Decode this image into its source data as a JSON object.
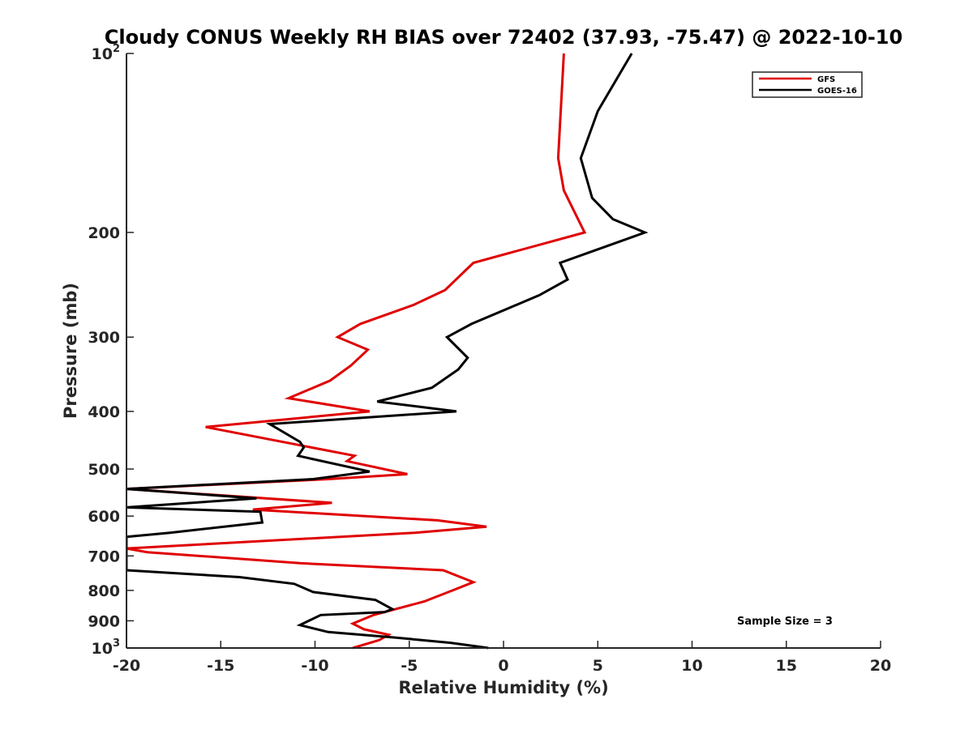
{
  "chart_data": {
    "type": "line",
    "title": "Cloudy CONUS Weekly RH BIAS over 72402 (37.93, -75.47) @ 2022-10-10",
    "xlabel": "Relative Humidity (%)",
    "ylabel": "Pressure (mb)",
    "xlim": [
      -20,
      20
    ],
    "ylim": [
      100,
      1000
    ],
    "y_scale": "log",
    "y_reversed": true,
    "grid": false,
    "legend_position": "top-right",
    "x_ticks": [
      "-20",
      "-15",
      "-10",
      "-5",
      "0",
      "5",
      "10",
      "15",
      "20"
    ],
    "y_ticks": [
      {
        "value": 100,
        "base": "10",
        "exp": "2"
      },
      {
        "value": 200,
        "label": "200"
      },
      {
        "value": 300,
        "label": "300"
      },
      {
        "value": 400,
        "label": "400"
      },
      {
        "value": 500,
        "label": "500"
      },
      {
        "value": 600,
        "label": "600"
      },
      {
        "value": 700,
        "label": "700"
      },
      {
        "value": 800,
        "label": "800"
      },
      {
        "value": 900,
        "label": "900"
      },
      {
        "value": 1000,
        "base": "10",
        "exp": "3"
      }
    ],
    "annotation": "Sample Size = 3",
    "series": [
      {
        "name": "GFS",
        "color": "#e00000",
        "points": [
          [
            3.2,
            100
          ],
          [
            2.9,
            150
          ],
          [
            3.2,
            170
          ],
          [
            4.3,
            200
          ],
          [
            -1.6,
            225
          ],
          [
            -3.1,
            250
          ],
          [
            -4.8,
            265
          ],
          [
            -7.6,
            285
          ],
          [
            -8.8,
            300
          ],
          [
            -7.2,
            315
          ],
          [
            -8.1,
            335
          ],
          [
            -9.2,
            355
          ],
          [
            -11.4,
            380
          ],
          [
            -7.1,
            400
          ],
          [
            -15.8,
            425
          ],
          [
            -7.9,
            475
          ],
          [
            -8.3,
            485
          ],
          [
            -5.1,
            510
          ],
          [
            -9.3,
            520
          ],
          [
            -20,
            540
          ],
          [
            -9.1,
            570
          ],
          [
            -13.3,
            585
          ],
          [
            -3.5,
            610
          ],
          [
            -0.9,
            625
          ],
          [
            -4.7,
            640
          ],
          [
            -20,
            680
          ],
          [
            -18.9,
            690
          ],
          [
            -10.8,
            720
          ],
          [
            -3.2,
            740
          ],
          [
            -1.6,
            775
          ],
          [
            -2.7,
            800
          ],
          [
            -4.2,
            835
          ],
          [
            -6.9,
            880
          ],
          [
            -8.0,
            910
          ],
          [
            -7.4,
            930
          ],
          [
            -6.1,
            950
          ],
          [
            -6.6,
            970
          ],
          [
            -8.0,
            1000
          ]
        ]
      },
      {
        "name": "GOES-16",
        "color": "#000000",
        "points": [
          [
            6.8,
            100
          ],
          [
            5.0,
            125
          ],
          [
            4.1,
            150
          ],
          [
            4.7,
            175
          ],
          [
            5.8,
            190
          ],
          [
            7.5,
            200
          ],
          [
            3.0,
            225
          ],
          [
            3.4,
            240
          ],
          [
            1.9,
            255
          ],
          [
            -1.7,
            285
          ],
          [
            -3.0,
            300
          ],
          [
            -1.9,
            325
          ],
          [
            -2.4,
            340
          ],
          [
            -3.8,
            365
          ],
          [
            -6.7,
            385
          ],
          [
            -2.5,
            400
          ],
          [
            -12.4,
            420
          ],
          [
            -10.8,
            450
          ],
          [
            -10.6,
            460
          ],
          [
            -10.9,
            475
          ],
          [
            -7.1,
            505
          ],
          [
            -10.1,
            520
          ],
          [
            -20,
            540
          ],
          [
            -13.1,
            560
          ],
          [
            -20,
            580
          ],
          [
            -12.9,
            590
          ],
          [
            -12.8,
            615
          ],
          [
            -17.7,
            640
          ],
          [
            -20,
            650
          ],
          [
            -20,
            740
          ],
          [
            -14.0,
            760
          ],
          [
            -11.1,
            780
          ],
          [
            -10.1,
            805
          ],
          [
            -6.8,
            830
          ],
          [
            -6.2,
            850
          ],
          [
            -5.9,
            860
          ],
          [
            -6.3,
            870
          ],
          [
            -9.7,
            880
          ],
          [
            -10.8,
            915
          ],
          [
            -9.3,
            940
          ],
          [
            -5.8,
            960
          ],
          [
            -2.8,
            980
          ],
          [
            -0.8,
            1000
          ]
        ]
      }
    ]
  }
}
